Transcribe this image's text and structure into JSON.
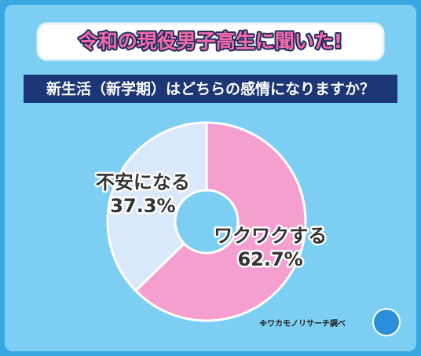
{
  "chart_data": {
    "type": "donut",
    "title": "令和の現役男子高生に聞いた!",
    "subtitle": "新生活（新学期）はどちらの感情になりますか？",
    "categories": [
      "ワクワクする",
      "不安になる"
    ],
    "values": [
      62.7,
      37.3
    ],
    "value_labels": [
      "62.7%",
      "37.3%"
    ],
    "colors": [
      "#f59fd0",
      "#d9e9fb"
    ],
    "source": "※ワカモノリサーチ調べ"
  }
}
